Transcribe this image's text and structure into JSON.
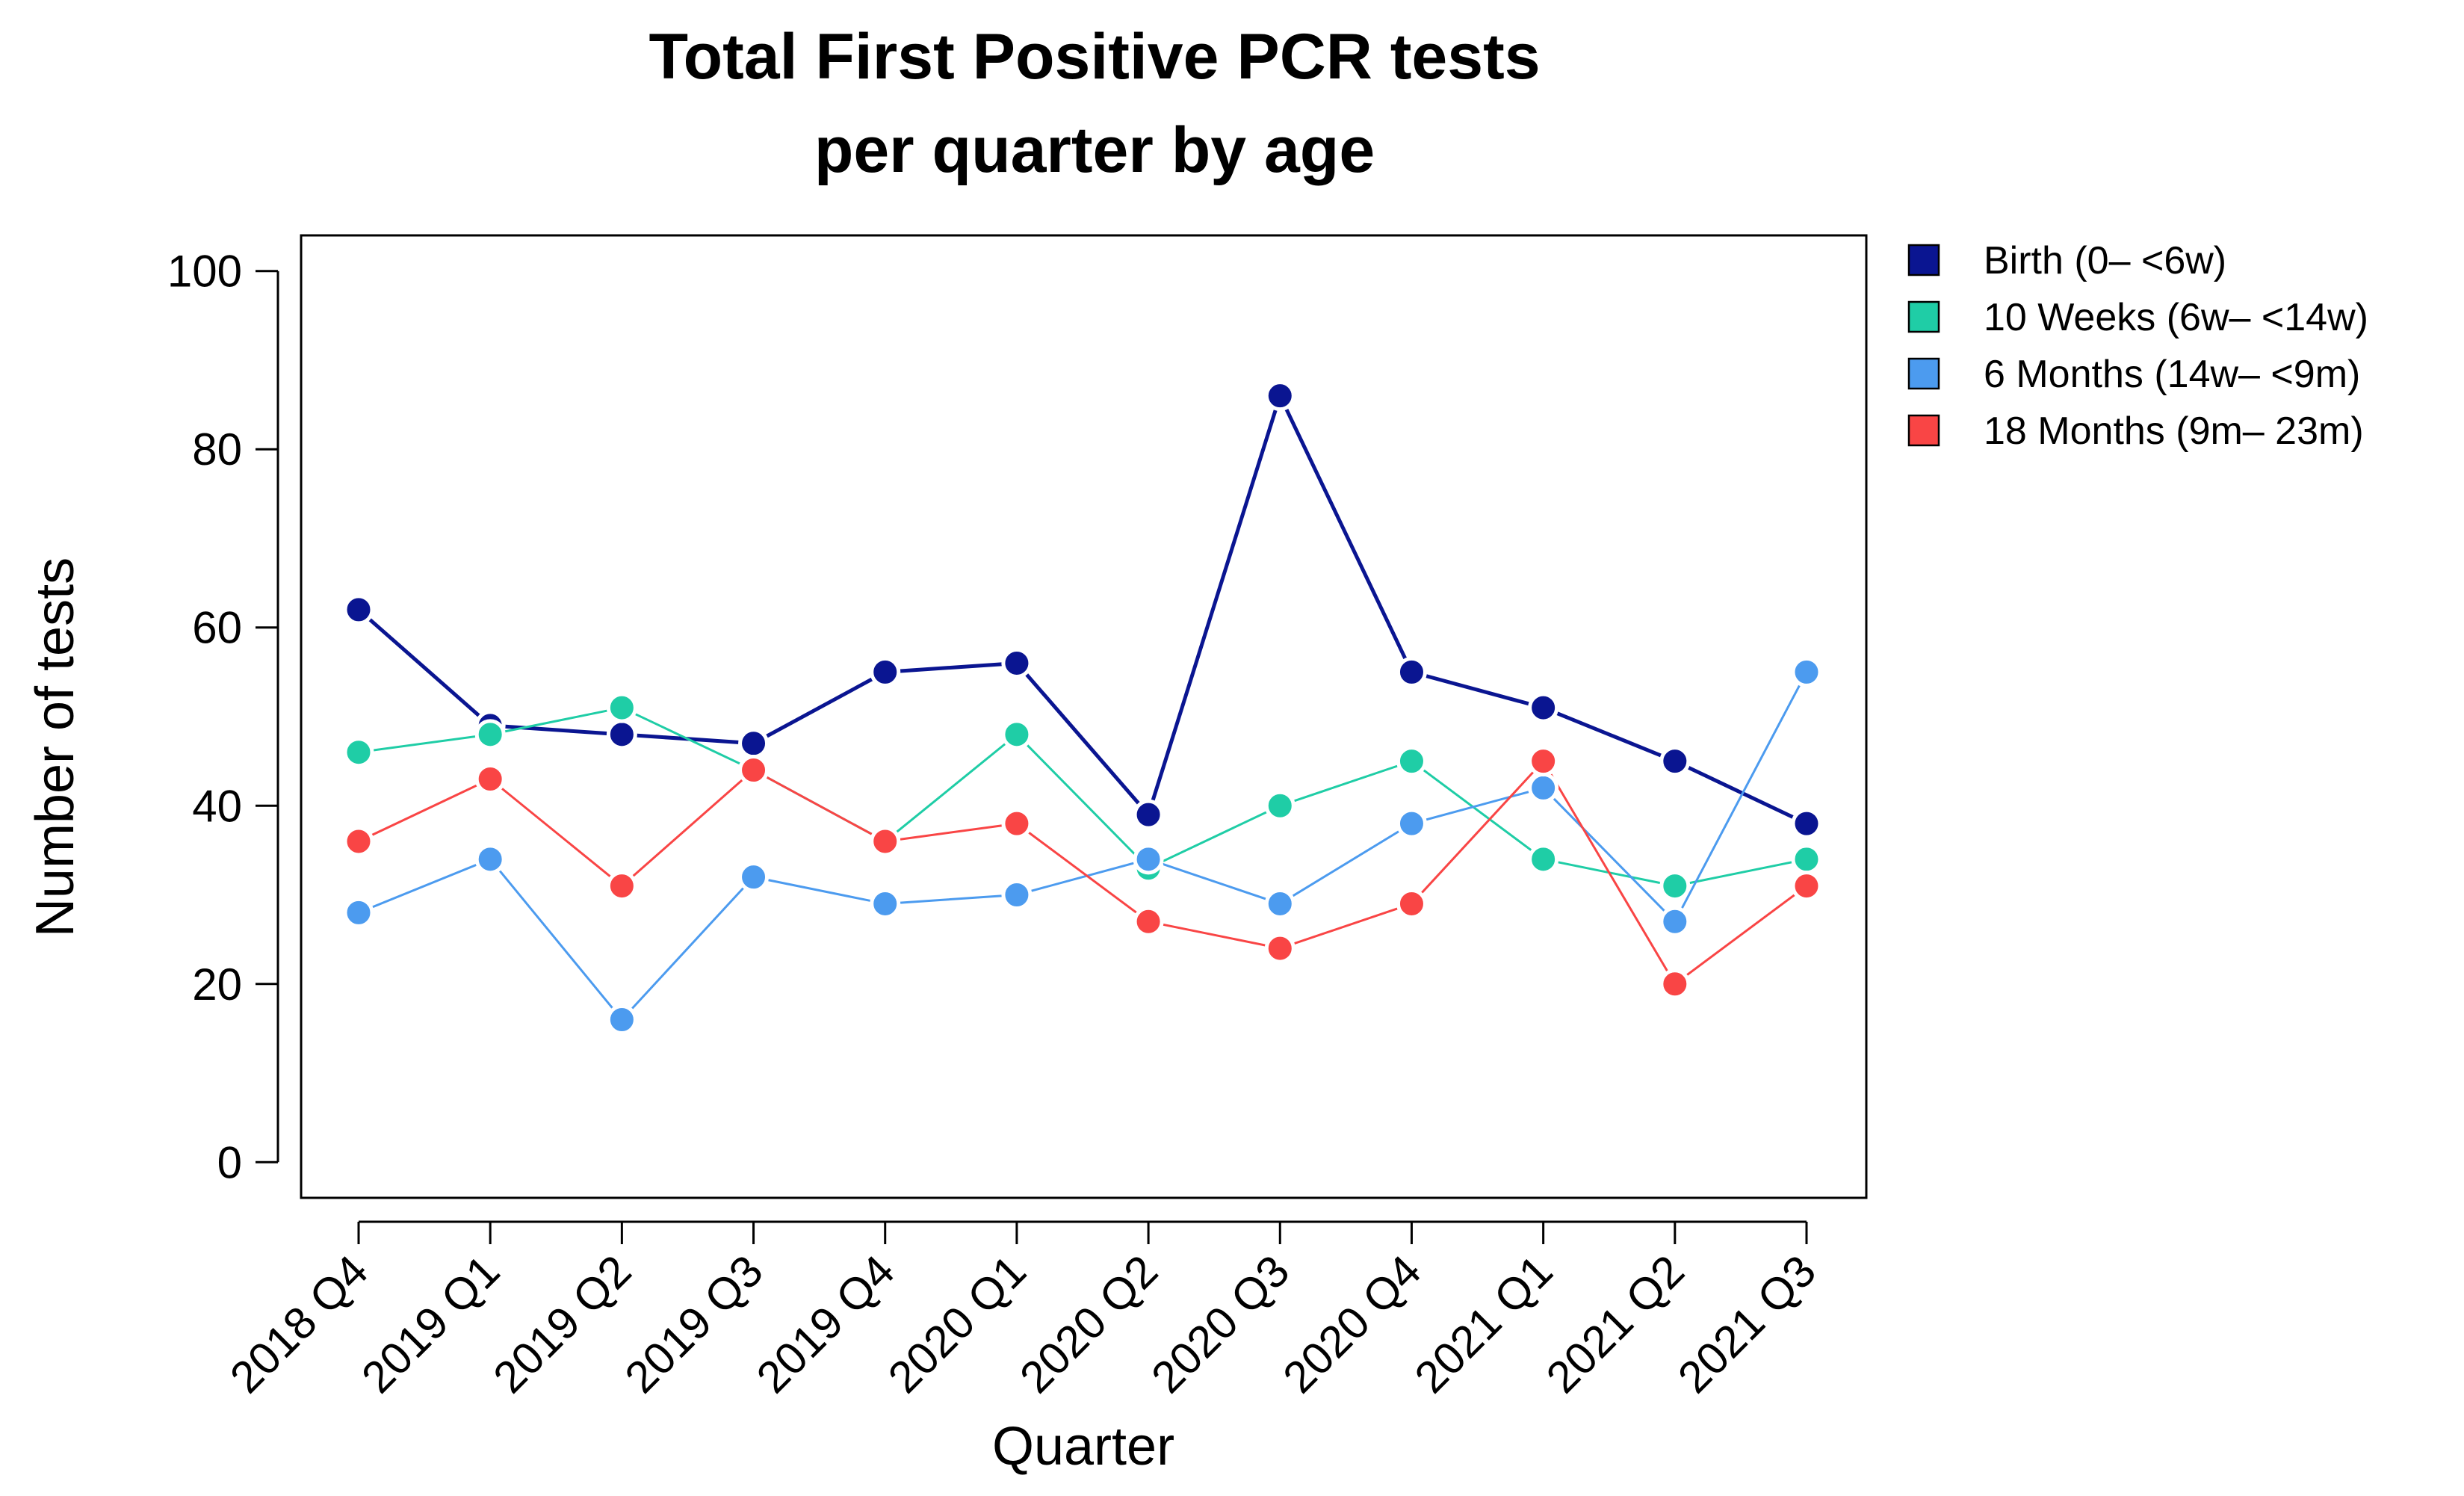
{
  "chart_data": {
    "type": "line",
    "title_line1": "Total First Positive PCR tests",
    "title_line2": "per quarter by age",
    "xlabel": "Quarter",
    "ylabel": "Number of tests",
    "ylim": [
      -4,
      104
    ],
    "yticks": [
      0,
      20,
      40,
      60,
      80,
      100
    ],
    "ytick_labels": [
      "0",
      "20",
      "40",
      "60",
      "80",
      "100"
    ],
    "categories": [
      "2018 Q4",
      "2019 Q1",
      "2019 Q2",
      "2019 Q3",
      "2019 Q4",
      "2020 Q1",
      "2020 Q2",
      "2020 Q3",
      "2020 Q4",
      "2021 Q1",
      "2021 Q2",
      "2021 Q3"
    ],
    "legend_position": "right",
    "grid": false,
    "series": [
      {
        "name": "Birth (0– <6w)",
        "color": "#0a1591",
        "line_weight": "thick",
        "values": [
          62,
          49,
          48,
          47,
          55,
          56,
          39,
          86,
          55,
          51,
          45,
          38
        ]
      },
      {
        "name": "10 Weeks (6w– <14w)",
        "color": "#1fcda6",
        "line_weight": "thin",
        "values": [
          46,
          48,
          51,
          44,
          36,
          48,
          33,
          40,
          45,
          34,
          31,
          34
        ]
      },
      {
        "name": "6 Months (14w– <9m)",
        "color": "#4c9bef",
        "line_weight": "thin",
        "values": [
          28,
          34,
          16,
          32,
          29,
          30,
          34,
          29,
          38,
          42,
          27,
          55
        ]
      },
      {
        "name": "18 Months (9m– 23m)",
        "color": "#f94545",
        "line_weight": "thin",
        "values": [
          36,
          43,
          31,
          44,
          36,
          38,
          27,
          24,
          29,
          45,
          20,
          31
        ]
      }
    ]
  }
}
